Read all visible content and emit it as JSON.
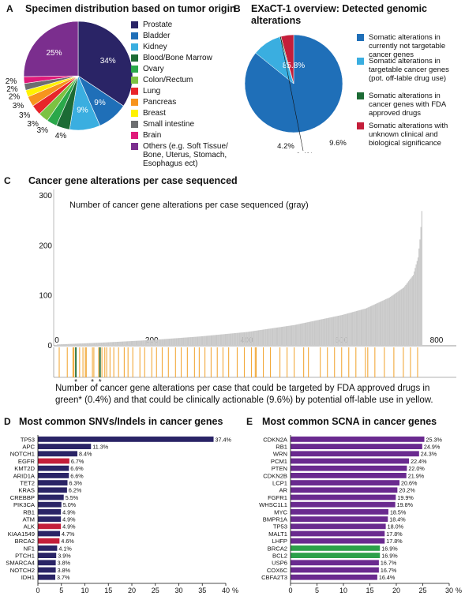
{
  "panels": {
    "A": {
      "letter": "A",
      "title": "Specimen distribution based on tumor origin"
    },
    "B": {
      "letter": "B",
      "title": "EXaCT-1 overview: Detected genomic alterations"
    },
    "C": {
      "letter": "C",
      "title": "Cancer gene alterations per case sequenced",
      "inner_label": "Number of cancer gene alterations per case sequenced (gray)",
      "caption": "Number of cancer gene alterations per case that could be targeted by FDA approved drugs in green* (0.4%) and that could be clinically actionable (9.6%) by potential off-lable use in yellow."
    },
    "D": {
      "letter": "D",
      "title": "Most common SNVs/Indels in cancer genes"
    },
    "E": {
      "letter": "E",
      "title": "Most common SCNA in cancer genes"
    }
  },
  "colors": {
    "prostate": "#2a2466",
    "bladder": "#1f6fb8",
    "kidney": "#3aaee0",
    "blood": "#1c6b35",
    "ovary": "#2aa84a",
    "colon": "#7cc242",
    "lung": "#e8242a",
    "pancreas": "#f7941d",
    "breast": "#fff200",
    "small_intestine": "#6d6e70",
    "brain": "#e01a7a",
    "others": "#7b2e8e",
    "b_blue": "#1f6fb8",
    "b_light": "#3aaee0",
    "b_green": "#1c6b35",
    "b_red": "#c41e3a",
    "d_bar": "#2a2466",
    "d_red": "#c41e3a",
    "e_bar": "#6a2a8f",
    "e_green": "#2ca04a",
    "gray_bar": "#c8c8c8",
    "yellow": "#f2a93b",
    "green_line": "#1c6b35"
  },
  "chart_data": [
    {
      "id": "A",
      "type": "pie",
      "labels": [
        "Prostate",
        "Bladder",
        "Kidney",
        "Blood/Bone Marrow",
        "Ovary",
        "Colon/Rectum",
        "Lung",
        "Pancreas",
        "Breast",
        "Small intestine",
        "Brain",
        "Others (e.g. Soft Tissue/ Bone, Uterus, Stomach, Esophagus ect)"
      ],
      "values": [
        34,
        9,
        9,
        4,
        3,
        3,
        3,
        3,
        2,
        2,
        2,
        25
      ],
      "slice_labels": [
        "34%",
        "9%",
        "9%",
        "4%",
        "3%",
        "3%",
        "3%",
        "3%",
        "2%",
        "2%",
        "2%",
        "25%"
      ]
    },
    {
      "id": "B",
      "type": "pie",
      "labels": [
        "Somatic alterations in currently not targetable cancer genes",
        "Somatic alterations in targetable cancer genes (pot. off-lable drug use)",
        "Somatic alterations in cancer genes with FDA approved drugs",
        "Somatic alterations with unknown clinical and biological significance"
      ],
      "values": [
        85.8,
        9.6,
        0.4,
        4.2
      ],
      "slice_labels": [
        "85.8%",
        "9.6%",
        "0.4%",
        "4.2%"
      ]
    },
    {
      "id": "C",
      "type": "bar",
      "x_ticks": [
        "0",
        "200",
        "400",
        "600",
        "800"
      ],
      "xlim": [
        0,
        800
      ],
      "y_ticks": [
        "0",
        "100",
        "200",
        "300"
      ],
      "ylim": [
        0,
        300
      ],
      "n_cases": 770,
      "curve_x": [
        0,
        50,
        100,
        200,
        300,
        400,
        500,
        600,
        650,
        700,
        730,
        750,
        760,
        765,
        770
      ],
      "curve_y": [
        1,
        3,
        5,
        10,
        17,
        26,
        40,
        60,
        73,
        95,
        115,
        140,
        175,
        220,
        300
      ],
      "targetable_cases_yellow": [
        5,
        22,
        34,
        36,
        48,
        55,
        60,
        62,
        75,
        78,
        88,
        95,
        101,
        105,
        112,
        120,
        130,
        142,
        150,
        160,
        175,
        185,
        200,
        210,
        222,
        235,
        250,
        262,
        275,
        290,
        300,
        312,
        325,
        338,
        350,
        362,
        380,
        395,
        410,
        418,
        420,
        435,
        450,
        470,
        485,
        500,
        520,
        530,
        555,
        570,
        585,
        600,
        615,
        630,
        650,
        655,
        670,
        690,
        710,
        730,
        745,
        760
      ],
      "fda_cases_green": [
        40,
        91
      ],
      "asterisk_cases": [
        40,
        75,
        91
      ]
    },
    {
      "id": "D",
      "type": "bar",
      "orientation": "horizontal",
      "categories": [
        "TP53",
        "APC",
        "NOTCH1",
        "EGFR",
        "KMT2D",
        "ARID1A",
        "TET2",
        "KRAS",
        "CREBBP",
        "PIK3CA",
        "RB1",
        "ATM",
        "ALK",
        "KIAA1549",
        "BRCA2",
        "NF1",
        "PTCH1",
        "SMARCA4",
        "NOTCH2",
        "IDH1"
      ],
      "values": [
        37.4,
        11.3,
        8.4,
        6.7,
        6.6,
        6.6,
        6.3,
        6.2,
        5.5,
        5.0,
        4.9,
        4.9,
        4.9,
        4.7,
        4.6,
        4.1,
        3.9,
        3.8,
        3.8,
        3.7
      ],
      "value_labels": [
        "37.4%",
        "11.3%",
        "8.4%",
        "6.7%",
        "6.6%",
        "6.6%",
        "6.3%",
        "6.2%",
        "5.5%",
        "5.0%",
        "4.9%",
        "4.9%",
        "4.9%",
        "4.7%",
        "4.6%",
        "4.1%",
        "3.9%",
        "3.8%",
        "3.8%",
        "3.7%"
      ],
      "highlight": [
        "EGFR",
        "ALK",
        "BRCA2"
      ],
      "x_ticks": [
        "0",
        "5",
        "10",
        "15",
        "20",
        "25",
        "30",
        "35",
        "40"
      ],
      "xlim": [
        0,
        40
      ],
      "unit": "%"
    },
    {
      "id": "E",
      "type": "bar",
      "orientation": "horizontal",
      "categories": [
        "CDKN2A",
        "RB1",
        "WRN",
        "PCM1",
        "PTEN",
        "CDKN2B",
        "LCP1",
        "AR",
        "FGFR1",
        "WHSC1L1",
        "MYC",
        "BMPR1A",
        "TP53",
        "MALT1",
        "LHFP",
        "BRCA2",
        "BCL2",
        "USP6",
        "COX6C",
        "CBFA2T3"
      ],
      "values": [
        25.3,
        24.9,
        24.3,
        22.4,
        22.0,
        21.9,
        20.6,
        20.2,
        19.9,
        19.8,
        18.5,
        18.4,
        18.0,
        17.8,
        17.8,
        16.9,
        16.9,
        16.7,
        16.7,
        16.4
      ],
      "value_labels": [
        "25.3%",
        "24.9%",
        "24.3%",
        "22.4%",
        "22.0%",
        "21.9%",
        "20.6%",
        "20.2%",
        "19.9%",
        "19.8%",
        "18.5%",
        "18.4%",
        "18.0%",
        "17.8%",
        "17.8%",
        "16.9%",
        "16.9%",
        "16.7%",
        "16.7%",
        "16.4%"
      ],
      "highlight": [
        "BRCA2",
        "BCL2"
      ],
      "x_ticks": [
        "0",
        "5",
        "10",
        "15",
        "20",
        "25",
        "30"
      ],
      "xlim": [
        0,
        30
      ],
      "unit": "%"
    }
  ]
}
